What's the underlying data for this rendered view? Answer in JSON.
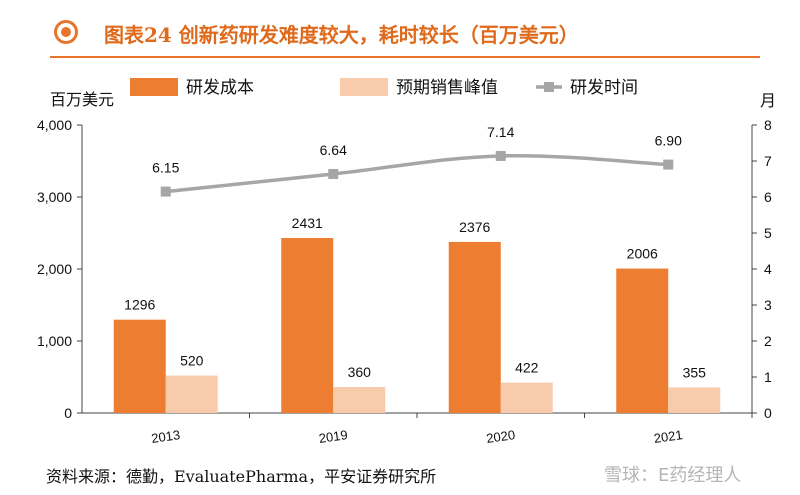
{
  "header": {
    "title": "图表24 创新药研发难度较大，耗时较长（百万美元）",
    "icon": "circle-dot-icon",
    "accent_color": "#e8742a"
  },
  "chart_data": {
    "type": "bar",
    "categories": [
      "2013",
      "2019",
      "2020",
      "2021"
    ],
    "series": [
      {
        "name": "研发成本",
        "kind": "bar",
        "axis": "left",
        "color": "#ed7d31",
        "values": [
          1296,
          2431,
          2376,
          2006
        ],
        "labels": [
          "1296",
          "2431",
          "2376",
          "2006"
        ]
      },
      {
        "name": "预期销售峰值",
        "kind": "bar",
        "axis": "left",
        "color": "#f8cbad",
        "values": [
          520,
          360,
          422,
          355
        ],
        "labels": [
          "520",
          "360",
          "422",
          "355"
        ]
      },
      {
        "name": "研发时间",
        "kind": "line",
        "axis": "right",
        "color": "#a6a6a6",
        "values": [
          6.15,
          6.64,
          7.14,
          6.9
        ],
        "labels": [
          "6.15",
          "6.64",
          "7.14",
          "6.90"
        ]
      }
    ],
    "y_left": {
      "label": "百万美元",
      "ylim": [
        0,
        4000
      ],
      "ticks": [
        0,
        1000,
        2000,
        3000,
        4000
      ],
      "tick_labels": [
        "0",
        "1,000",
        "2,000",
        "3,000",
        "4,000"
      ]
    },
    "y_right": {
      "label": "月",
      "ylim": [
        0,
        8
      ],
      "ticks": [
        0,
        1,
        2,
        3,
        4,
        5,
        6,
        7,
        8
      ],
      "tick_labels": [
        "0",
        "1",
        "2",
        "3",
        "4",
        "5",
        "6",
        "7",
        "8"
      ]
    },
    "grid": false,
    "legend": "top"
  },
  "footer": {
    "source": "资料来源：德勤，EvaluatePharma，平安证券研究所",
    "watermark": "雪球：E药经理人"
  }
}
